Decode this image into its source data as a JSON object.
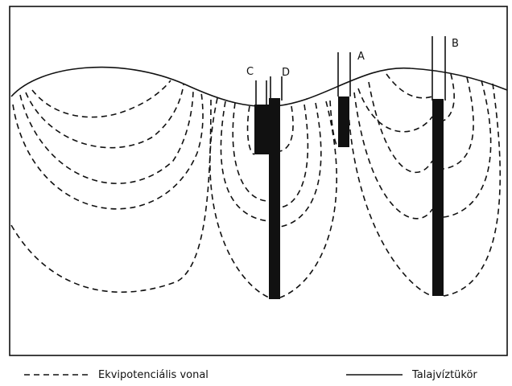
{
  "wells": [
    {
      "label": "C"
    },
    {
      "label": "D"
    },
    {
      "label": "A"
    },
    {
      "label": "B"
    }
  ],
  "legend": [
    {
      "label": "Ekvipotenciális vonal"
    },
    {
      "label": "Talajvíztükör"
    }
  ]
}
